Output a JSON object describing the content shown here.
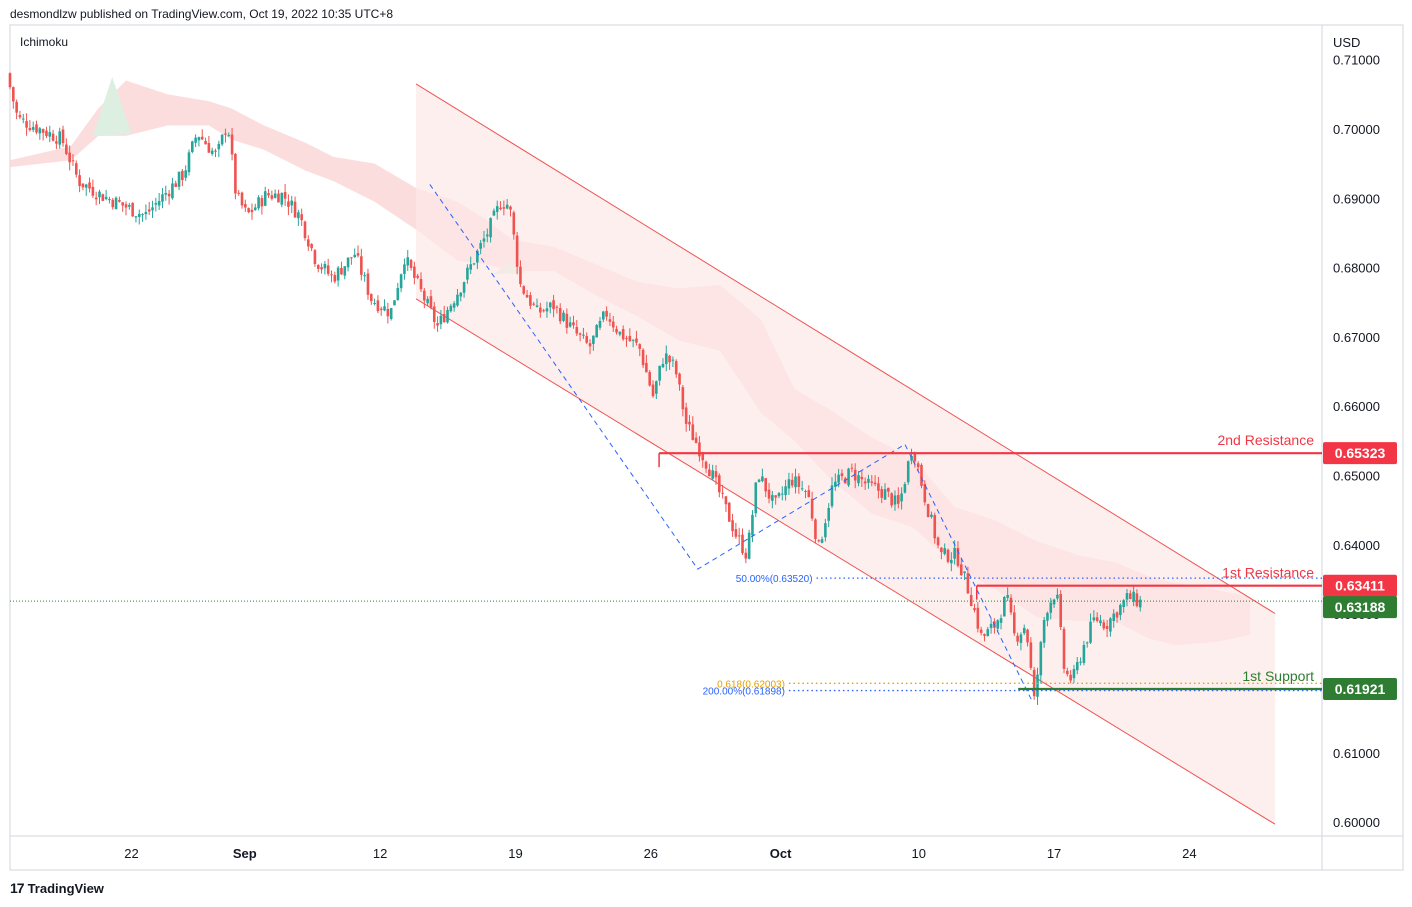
{
  "header": {
    "published_by": "desmondlzw published on TradingView.com, Oct 19, 2022 10:35 UTC+8"
  },
  "indicator": "Ichimoku",
  "footer": {
    "brand": "TradingView",
    "logo_mark": "17"
  },
  "colors": {
    "bull": "#26a69a",
    "bear": "#ef5350",
    "resistance": "#f23645",
    "support": "#2e7d32",
    "fib_blue": "#2962ff",
    "fib_orange": "#e5a000",
    "channel_fill": "#fde8e8",
    "cloud_red": "#fbd5d5",
    "cloud_green": "#dcefe0"
  },
  "chart_data": {
    "type": "candlestick",
    "currency": "USD",
    "ylim": [
      0.598,
      0.715
    ],
    "y_ticks": [
      "0.71000",
      "0.70000",
      "0.69000",
      "0.68000",
      "0.67000",
      "0.66000",
      "0.65000",
      "0.64000",
      "0.63000",
      "0.62000",
      "0.61000",
      "0.60000"
    ],
    "x_ticks": [
      {
        "label": "22",
        "t": 22
      },
      {
        "label": "Sep",
        "t": 63
      },
      {
        "label": "12",
        "t": 112
      },
      {
        "label": "19",
        "t": 161
      },
      {
        "label": "26",
        "t": 210
      },
      {
        "label": "Oct",
        "t": 257
      },
      {
        "label": "10",
        "t": 307
      },
      {
        "label": "17",
        "t": 356
      },
      {
        "label": "24",
        "t": 405
      }
    ],
    "t_range": [
      -22,
      453
    ],
    "price_line": {
      "value": 0.63188,
      "label": "0.63188"
    },
    "levels": [
      {
        "name": "2nd Resistance",
        "value": 0.65323,
        "label": "0.65323",
        "kind": "resistance",
        "t_start": 213
      },
      {
        "name": "1st Resistance",
        "value": 0.63411,
        "label": "0.63411",
        "kind": "resistance",
        "t_start": 328
      },
      {
        "name": "1st Support",
        "value": 0.61921,
        "label": "0.61921",
        "kind": "support",
        "t_start": 343
      }
    ],
    "fib_levels": [
      {
        "label": "50.00%(0.63520)",
        "value": 0.6352,
        "color": "blue",
        "t_start": 270
      },
      {
        "label": "0.618(0.62003)",
        "value": 0.62003,
        "color": "orange",
        "t_start": 260
      },
      {
        "label": "200.00%(0.61898)",
        "value": 0.61898,
        "color": "blue",
        "t_start": 260
      }
    ],
    "channel": {
      "upper": [
        [
          125,
          0.7065
        ],
        [
          436,
          0.6301
        ]
      ],
      "lower": [
        [
          125,
          0.6755
        ],
        [
          436,
          0.5997
        ]
      ]
    },
    "zigzag": [
      [
        130,
        0.692
      ],
      [
        227,
        0.6365
      ],
      [
        302,
        0.6545
      ],
      [
        348,
        0.6175
      ]
    ],
    "zigzag2": [
      [
        227,
        0.6365
      ],
      [
        302,
        0.6545
      ]
    ],
    "cloud": [
      {
        "t": -22,
        "top": 0.6955,
        "bot": 0.6945
      },
      {
        "t": 0,
        "top": 0.6975,
        "bot": 0.6955
      },
      {
        "t": 10,
        "top": 0.703,
        "bot": 0.699
      },
      {
        "t": 20,
        "top": 0.707,
        "bot": 0.699
      },
      {
        "t": 35,
        "top": 0.705,
        "bot": 0.7005
      },
      {
        "t": 50,
        "top": 0.704,
        "bot": 0.7005
      },
      {
        "t": 58,
        "top": 0.703,
        "bot": 0.6985
      },
      {
        "t": 70,
        "top": 0.7005,
        "bot": 0.697
      },
      {
        "t": 85,
        "top": 0.698,
        "bot": 0.694
      },
      {
        "t": 95,
        "top": 0.696,
        "bot": 0.6925
      },
      {
        "t": 110,
        "top": 0.695,
        "bot": 0.6895
      },
      {
        "t": 125,
        "top": 0.6915,
        "bot": 0.6855
      },
      {
        "t": 140,
        "top": 0.6895,
        "bot": 0.681
      },
      {
        "t": 150,
        "top": 0.687,
        "bot": 0.6805
      },
      {
        "t": 160,
        "top": 0.684,
        "bot": 0.6795
      },
      {
        "t": 175,
        "top": 0.683,
        "bot": 0.6795
      },
      {
        "t": 190,
        "top": 0.6805,
        "bot": 0.676
      },
      {
        "t": 205,
        "top": 0.678,
        "bot": 0.673
      },
      {
        "t": 220,
        "top": 0.677,
        "bot": 0.6695
      },
      {
        "t": 235,
        "top": 0.6775,
        "bot": 0.668
      },
      {
        "t": 250,
        "top": 0.6725,
        "bot": 0.659
      },
      {
        "t": 262,
        "top": 0.6625,
        "bot": 0.655
      },
      {
        "t": 275,
        "top": 0.6595,
        "bot": 0.6495
      },
      {
        "t": 290,
        "top": 0.6555,
        "bot": 0.6445
      },
      {
        "t": 305,
        "top": 0.6525,
        "bot": 0.6425
      },
      {
        "t": 320,
        "top": 0.6455,
        "bot": 0.637
      },
      {
        "t": 335,
        "top": 0.6435,
        "bot": 0.6335
      },
      {
        "t": 350,
        "top": 0.6405,
        "bot": 0.6295
      },
      {
        "t": 365,
        "top": 0.6385,
        "bot": 0.629
      },
      {
        "t": 378,
        "top": 0.6375,
        "bot": 0.629
      },
      {
        "t": 390,
        "top": 0.6355,
        "bot": 0.6265
      },
      {
        "t": 400,
        "top": 0.6345,
        "bot": 0.6255
      },
      {
        "t": 415,
        "top": 0.6335,
        "bot": 0.626
      },
      {
        "t": 427,
        "top": 0.6325,
        "bot": 0.627
      }
    ],
    "ohlc_pivots": [
      [
        -22,
        0.708
      ],
      [
        -18,
        0.7015
      ],
      [
        -10,
        0.7
      ],
      [
        -2,
        0.6985
      ],
      [
        4,
        0.6925
      ],
      [
        12,
        0.6905
      ],
      [
        20,
        0.689
      ],
      [
        28,
        0.6875
      ],
      [
        35,
        0.6905
      ],
      [
        42,
        0.6935
      ],
      [
        47,
        0.6995
      ],
      [
        54,
        0.696
      ],
      [
        58,
        0.701
      ],
      [
        61,
        0.6905
      ],
      [
        65,
        0.6875
      ],
      [
        72,
        0.6905
      ],
      [
        78,
        0.6905
      ],
      [
        84,
        0.6875
      ],
      [
        90,
        0.681
      ],
      [
        96,
        0.6785
      ],
      [
        104,
        0.682
      ],
      [
        110,
        0.6755
      ],
      [
        117,
        0.6735
      ],
      [
        122,
        0.6815
      ],
      [
        128,
        0.6765
      ],
      [
        134,
        0.6715
      ],
      [
        142,
        0.677
      ],
      [
        152,
        0.685
      ],
      [
        157,
        0.6895
      ],
      [
        160,
        0.689
      ],
      [
        164,
        0.6775
      ],
      [
        170,
        0.6735
      ],
      [
        176,
        0.6745
      ],
      [
        184,
        0.6705
      ],
      [
        189,
        0.6685
      ],
      [
        195,
        0.6735
      ],
      [
        200,
        0.6705
      ],
      [
        207,
        0.6685
      ],
      [
        212,
        0.6615
      ],
      [
        216,
        0.6675
      ],
      [
        220,
        0.6655
      ],
      [
        224,
        0.6575
      ],
      [
        228,
        0.6545
      ],
      [
        233,
        0.6505
      ],
      [
        238,
        0.6455
      ],
      [
        242,
        0.6415
      ],
      [
        246,
        0.6385
      ],
      [
        250,
        0.6505
      ],
      [
        256,
        0.6455
      ],
      [
        262,
        0.6495
      ],
      [
        268,
        0.6475
      ],
      [
        272,
        0.6395
      ],
      [
        277,
        0.6485
      ],
      [
        284,
        0.6505
      ],
      [
        290,
        0.6485
      ],
      [
        296,
        0.6475
      ],
      [
        301,
        0.6455
      ],
      [
        306,
        0.6545
      ],
      [
        310,
        0.6475
      ],
      [
        316,
        0.6385
      ],
      [
        322,
        0.6385
      ],
      [
        327,
        0.6325
      ],
      [
        331,
        0.6265
      ],
      [
        336,
        0.6285
      ],
      [
        340,
        0.6325
      ],
      [
        343,
        0.6265
      ],
      [
        347,
        0.6285
      ],
      [
        350,
        0.6175
      ],
      [
        354,
        0.6305
      ],
      [
        358,
        0.6335
      ],
      [
        361,
        0.6215
      ],
      [
        364,
        0.6205
      ],
      [
        368,
        0.6255
      ],
      [
        372,
        0.6295
      ],
      [
        376,
        0.6285
      ],
      [
        380,
        0.6305
      ],
      [
        384,
        0.6325
      ],
      [
        388,
        0.6318
      ]
    ]
  }
}
